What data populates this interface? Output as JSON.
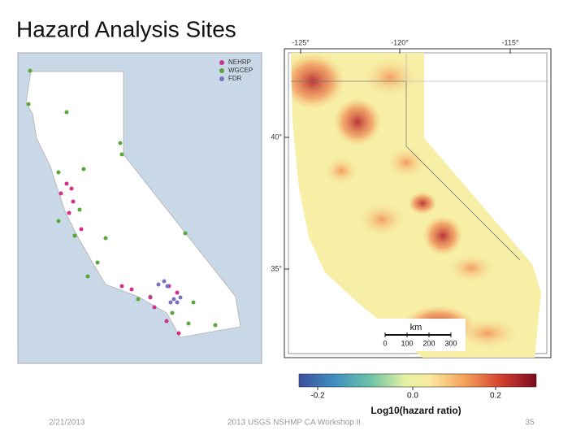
{
  "title": "Hazard Analysis Sites",
  "site_map": {
    "legend": [
      "NEHRP",
      "WGCEP",
      "FDR"
    ]
  },
  "hazard_map": {
    "longitude_labels": [
      "-125°",
      "-120°",
      "-115°"
    ],
    "latitude_labels": [
      "40°",
      "35°"
    ],
    "scale_bar": {
      "unit": "km",
      "ticks": [
        "0",
        "100",
        "200",
        "300"
      ]
    },
    "colorbar": {
      "ticks": [
        "-0.2",
        "0.0",
        "0.2"
      ],
      "label": "Log10(hazard ratio)"
    }
  },
  "footer": {
    "date": "2/21/2013",
    "event": "2013 USGS NSHMP CA Workshop II",
    "page": "35"
  }
}
